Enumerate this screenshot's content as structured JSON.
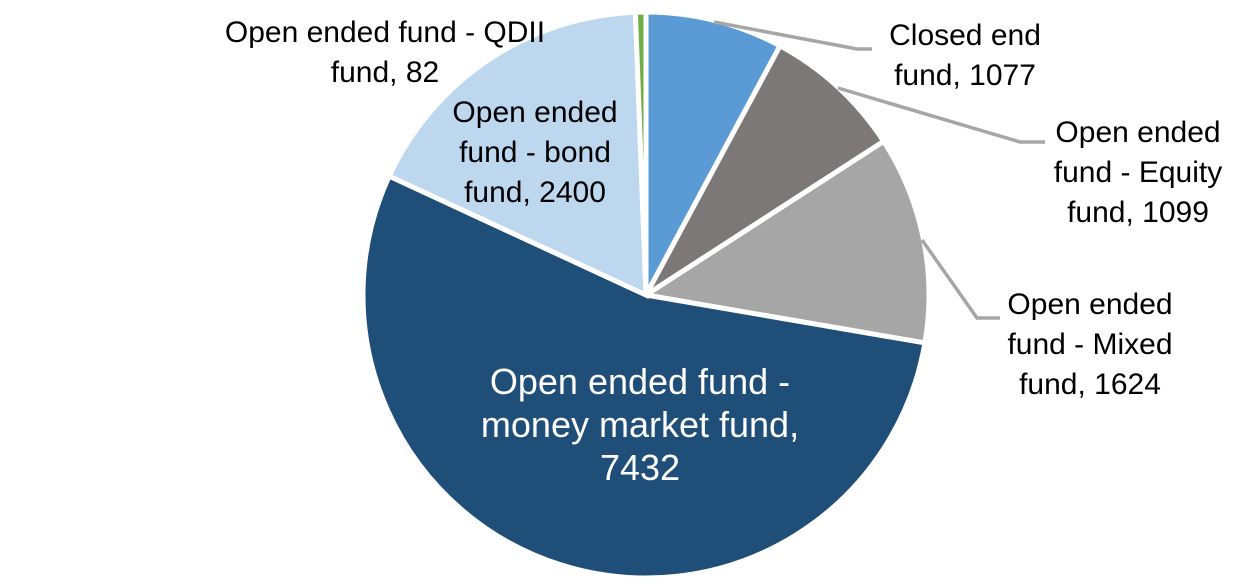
{
  "chart_data": {
    "type": "pie",
    "title": "",
    "legend": "none",
    "background": "#FFFFFF",
    "total": 13714,
    "start_angle_deg": 0,
    "direction": "clockwise",
    "slice_border_color": "#FFFFFF",
    "leader_line_color": "#A6A6A6",
    "categories": [
      "Closed end fund",
      "Open ended fund - Equity fund",
      "Open ended fund - Mixed fund",
      "Open ended fund - money market fund",
      "Open ended fund - bond fund",
      "Open ended fund - QDII fund"
    ],
    "values": [
      1077,
      1099,
      1624,
      7432,
      2400,
      82
    ],
    "slices": [
      {
        "id": "closed-end-fund",
        "name": "Closed end fund",
        "value": 1077,
        "color": "#5B9BD5",
        "label_color": "#000000",
        "label_position": "outside",
        "label_lines": [
          "Closed end",
          "fund, 1077"
        ]
      },
      {
        "id": "equity-fund",
        "name": "Open ended fund - Equity fund",
        "value": 1099,
        "color": "#7C7878",
        "label_color": "#000000",
        "label_position": "outside",
        "label_lines": [
          "Open ended",
          "fund - Equity",
          "fund, 1099"
        ]
      },
      {
        "id": "mixed-fund",
        "name": "Open ended fund - Mixed fund",
        "value": 1624,
        "color": "#A6A6A6",
        "label_color": "#000000",
        "label_position": "outside",
        "label_lines": [
          "Open ended",
          "fund - Mixed",
          "fund, 1624"
        ]
      },
      {
        "id": "money-market-fund",
        "name": "Open ended fund - money market fund",
        "value": 7432,
        "color": "#1F4E79",
        "label_color": "#FFFFFF",
        "label_position": "inside",
        "label_lines": [
          "Open ended fund -",
          "money market fund,",
          "7432"
        ]
      },
      {
        "id": "bond-fund",
        "name": "Open ended fund - bond fund",
        "value": 2400,
        "color": "#BDD7EE",
        "label_color": "#000000",
        "label_position": "outside",
        "label_lines": [
          "Open ended",
          "fund - bond",
          "fund, 2400"
        ]
      },
      {
        "id": "qdii-fund",
        "name": "Open ended fund - QDII fund",
        "value": 82,
        "color": "#70AD47",
        "label_color": "#000000",
        "label_position": "outside",
        "label_lines": [
          "Open ended fund - QDII",
          "fund, 82"
        ]
      }
    ]
  }
}
